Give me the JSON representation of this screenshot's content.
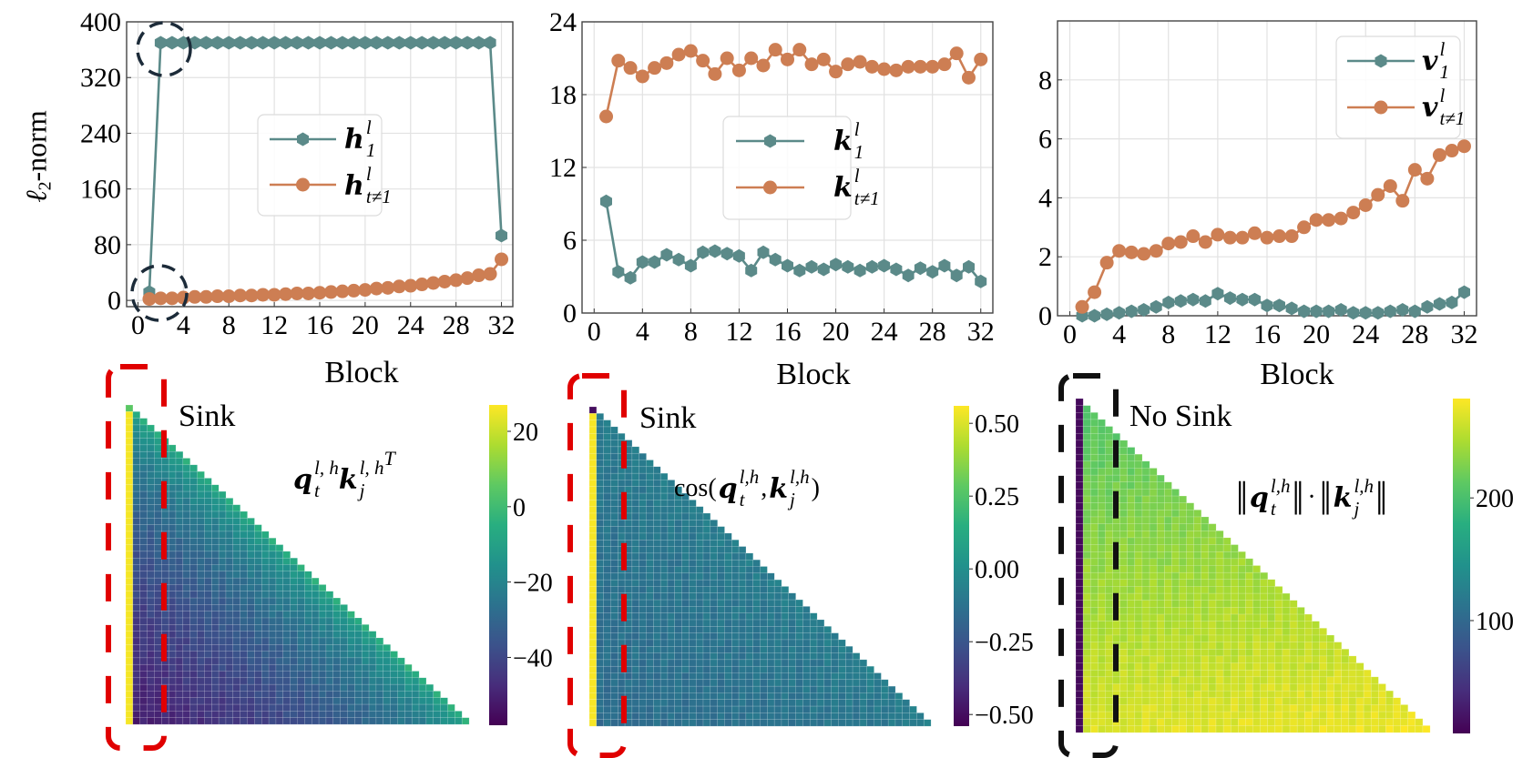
{
  "chart_data": [
    {
      "type": "line",
      "title": "",
      "xlabel": "Block",
      "ylabel": {
        "symbol": "ℓ",
        "sub": "2",
        "rest": "-norm"
      },
      "x": [
        1,
        2,
        3,
        4,
        5,
        6,
        7,
        8,
        9,
        10,
        11,
        12,
        13,
        14,
        15,
        16,
        17,
        18,
        19,
        20,
        21,
        22,
        23,
        24,
        25,
        26,
        27,
        28,
        29,
        30,
        31,
        32
      ],
      "xlim": [
        -1,
        33
      ],
      "ylim": [
        -9,
        400
      ],
      "xticks": [
        0,
        4,
        8,
        12,
        16,
        20,
        24,
        28,
        32
      ],
      "yticks": [
        0,
        80,
        160,
        240,
        320,
        400
      ],
      "grid": true,
      "legend_placement": "center",
      "series": [
        {
          "name": "h_1^l",
          "label": {
            "base": "h",
            "sup": "l",
            "sub": "1"
          },
          "color": "#5b8a89",
          "marker": "hexagon",
          "values": [
            12,
            370,
            370,
            370,
            370,
            370,
            370,
            370,
            370,
            370,
            370,
            370,
            370,
            370,
            370,
            370,
            370,
            370,
            370,
            370,
            370,
            370,
            370,
            370,
            370,
            370,
            370,
            370,
            370,
            370,
            370,
            93
          ]
        },
        {
          "name": "h_{t≠1}^l",
          "label": {
            "base": "h",
            "sup": "l",
            "sub": "t≠1"
          },
          "color": "#cd7e53",
          "marker": "circle",
          "values": [
            2,
            3,
            3,
            4,
            5,
            5,
            6,
            6,
            7,
            7,
            8,
            8,
            9,
            10,
            10,
            11,
            12,
            13,
            14,
            15,
            17,
            18,
            20,
            21,
            23,
            25,
            27,
            29,
            32,
            36,
            38,
            59
          ]
        }
      ],
      "annotations": [
        "dashed-circle at block 1-2 top",
        "dashed-circle at block 1 bottom"
      ]
    },
    {
      "type": "line",
      "title": "",
      "xlabel": "Block",
      "ylabel": "",
      "x": [
        1,
        2,
        3,
        4,
        5,
        6,
        7,
        8,
        9,
        10,
        11,
        12,
        13,
        14,
        15,
        16,
        17,
        18,
        19,
        20,
        21,
        22,
        23,
        24,
        25,
        26,
        27,
        28,
        29,
        30,
        31,
        32
      ],
      "xlim": [
        -1,
        33
      ],
      "ylim": [
        0,
        24
      ],
      "xticks": [
        0,
        4,
        8,
        12,
        16,
        20,
        24,
        28,
        32
      ],
      "yticks": [
        0,
        6,
        12,
        18,
        24
      ],
      "grid": true,
      "legend_placement": "center-right",
      "series": [
        {
          "name": "k_1^l",
          "label": {
            "base": "k",
            "sup": "l",
            "sub": "1"
          },
          "color": "#5b8a89",
          "marker": "hexagon",
          "values": [
            9.2,
            3.4,
            2.9,
            4.2,
            4.2,
            4.8,
            4.4,
            3.9,
            5.0,
            5.1,
            4.9,
            4.7,
            3.5,
            5.0,
            4.4,
            3.9,
            3.5,
            3.8,
            3.6,
            4.0,
            3.8,
            3.5,
            3.8,
            3.9,
            3.6,
            3.1,
            3.7,
            3.4,
            3.9,
            3.1,
            3.8,
            2.6
          ]
        },
        {
          "name": "k_{t≠1}^l",
          "label": {
            "base": "k",
            "sup": "l",
            "sub": "t≠1"
          },
          "color": "#cd7e53",
          "marker": "circle",
          "values": [
            16.2,
            20.8,
            20.2,
            19.5,
            20.2,
            20.6,
            21.3,
            21.6,
            20.8,
            19.7,
            21.0,
            20.0,
            21.0,
            20.4,
            21.7,
            20.9,
            21.7,
            20.5,
            20.9,
            19.9,
            20.5,
            20.7,
            20.3,
            20.1,
            20.0,
            20.3,
            20.3,
            20.3,
            20.5,
            21.4,
            19.4,
            20.9
          ]
        }
      ]
    },
    {
      "type": "line",
      "title": "",
      "xlabel": "Block",
      "ylabel": "",
      "x": [
        1,
        2,
        3,
        4,
        5,
        6,
        7,
        8,
        9,
        10,
        11,
        12,
        13,
        14,
        15,
        16,
        17,
        18,
        19,
        20,
        21,
        22,
        23,
        24,
        25,
        26,
        27,
        28,
        29,
        30,
        31,
        32
      ],
      "xlim": [
        -1,
        33
      ],
      "ylim": [
        0,
        10
      ],
      "xticks": [
        0,
        4,
        8,
        12,
        16,
        20,
        24,
        28,
        32
      ],
      "yticks": [
        0,
        2,
        4,
        6,
        8
      ],
      "grid": true,
      "legend_placement": "top-right",
      "series": [
        {
          "name": "v_1^l",
          "label": {
            "base": "v",
            "sup": "l",
            "sub": "1"
          },
          "color": "#5b8a89",
          "marker": "hexagon",
          "values": [
            0.0,
            0.0,
            0.05,
            0.1,
            0.15,
            0.2,
            0.3,
            0.45,
            0.5,
            0.55,
            0.5,
            0.75,
            0.6,
            0.55,
            0.55,
            0.35,
            0.35,
            0.25,
            0.15,
            0.15,
            0.15,
            0.2,
            0.1,
            0.1,
            0.1,
            0.15,
            0.2,
            0.15,
            0.3,
            0.4,
            0.45,
            0.8
          ]
        },
        {
          "name": "v_{t≠1}^l",
          "label": {
            "base": "v",
            "sup": "l",
            "sub": "t≠1"
          },
          "color": "#cd7e53",
          "marker": "circle",
          "values": [
            0.3,
            0.8,
            1.8,
            2.2,
            2.15,
            2.1,
            2.2,
            2.45,
            2.5,
            2.7,
            2.5,
            2.75,
            2.65,
            2.65,
            2.8,
            2.65,
            2.7,
            2.7,
            3.0,
            3.25,
            3.25,
            3.3,
            3.5,
            3.75,
            4.1,
            4.4,
            3.9,
            4.95,
            4.65,
            5.45,
            5.6,
            5.75
          ]
        }
      ]
    },
    {
      "type": "heatmap",
      "annotation": "Sink",
      "formula": {
        "q": {
          "base": "q",
          "sup": "l, h",
          "sub": "t"
        },
        "k": {
          "base": "k",
          "sup": "l, h",
          "sub": "j"
        },
        "transpose": "T"
      },
      "size": 48,
      "first_cell_value": 5,
      "sink_column_value": 26,
      "near_diagonal_value": -5,
      "far_from_diagonal_change": -47,
      "row_change": 0,
      "colorbar": {
        "min": -58,
        "max": 27,
        "ticks": [
          20,
          0,
          -20,
          -40
        ],
        "tick_labels": [
          "20",
          "0",
          "−20",
          "−40"
        ],
        "colormap": "viridis"
      },
      "box_color": "#e00000"
    },
    {
      "type": "heatmap",
      "annotation": "Sink",
      "formula": {
        "prefix": "cos(",
        "q": {
          "base": "q",
          "sup": "l,h",
          "sub": "t"
        },
        "sep": ",",
        "k": {
          "base": "k",
          "sup": "l,h",
          "sub": "j"
        },
        "suffix": ")"
      },
      "size": 48,
      "first_cell_value": -0.5,
      "sink_column_value": 0.55,
      "near_diagonal_value": -0.07,
      "far_from_diagonal_change": -0.08,
      "row_change": 0,
      "colorbar": {
        "min": -0.54,
        "max": 0.56,
        "ticks": [
          0.5,
          0.25,
          0,
          -0.25,
          -0.5
        ],
        "tick_labels": [
          "0.50",
          "0.25",
          "0.00",
          "−0.25",
          "−0.50"
        ],
        "colormap": "viridis"
      },
      "box_color": "#e00000"
    },
    {
      "type": "heatmap",
      "annotation": "No Sink",
      "formula": {
        "bars": "‖",
        "dot": "·",
        "q": {
          "base": "q",
          "sup": "l,h",
          "sub": "t"
        },
        "k": {
          "base": "k",
          "sup": "l,h",
          "sub": "j"
        }
      },
      "size": 48,
      "first_cell_value": 15,
      "sink_column_value": 15,
      "near_diagonal_value": 205,
      "far_from_diagonal_change": 0,
      "row_change": 62,
      "colorbar": {
        "min": 8,
        "max": 281,
        "ticks": [
          200,
          100
        ],
        "tick_labels": [
          "200",
          "100"
        ],
        "colormap": "viridis"
      },
      "box_color": "#111111"
    }
  ]
}
